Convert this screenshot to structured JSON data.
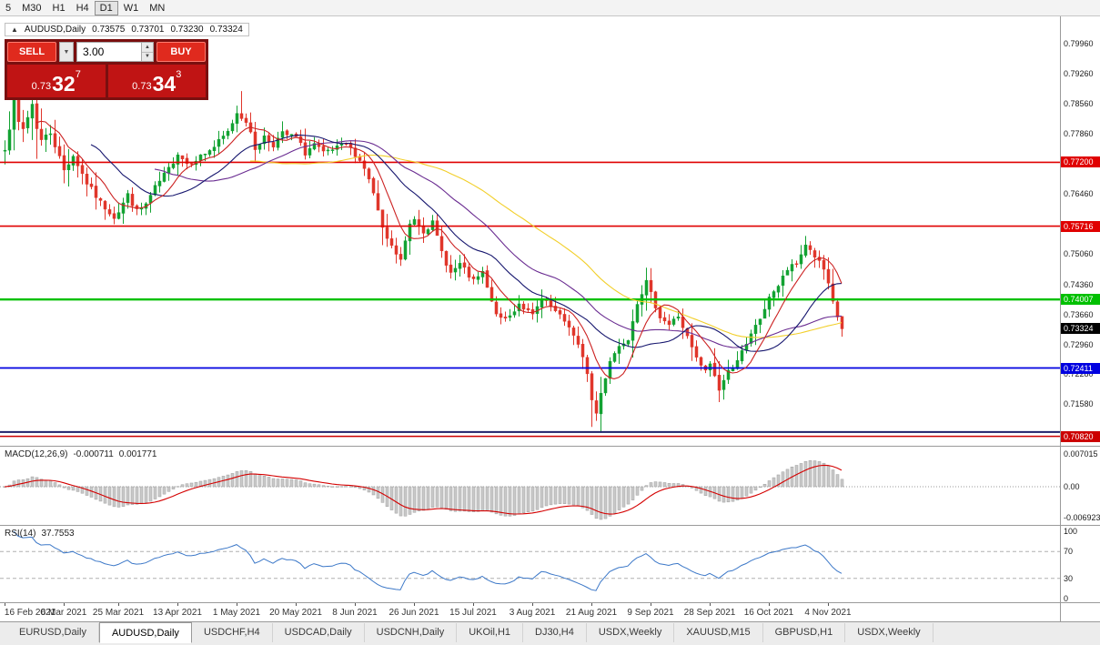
{
  "colors": {
    "btn-red": "#e02a1e",
    "panel-red": "#7a0f0f",
    "box-red": "#c01414"
  },
  "toolbar": {
    "timeframes": [
      "5",
      "M30",
      "H1",
      "H4",
      "D1",
      "W1",
      "MN"
    ],
    "active": "D1"
  },
  "chart": {
    "symbol_header": {
      "arrow": "▲",
      "symbol": "AUDUSD,Daily",
      "open": "0.73575",
      "high": "0.73701",
      "low": "0.73230",
      "close": "0.73324"
    },
    "trade_panel": {
      "sell_label": "SELL",
      "buy_label": "BUY",
      "volume": "3.00",
      "bid": {
        "prefix": "0.73",
        "big": "32",
        "sup": "7"
      },
      "ask": {
        "prefix": "0.73",
        "big": "34",
        "sup": "3"
      }
    }
  },
  "chart_data": {
    "type": "candlestick",
    "symbol": "AUDUSD",
    "timeframe": "Daily",
    "y_axis": {
      "top": 0.806,
      "bottom": 0.706,
      "ticks": [
        [
          "0.79960",
          0.7996
        ],
        [
          "0.79260",
          0.7926
        ],
        [
          "0.78560",
          0.7856
        ],
        [
          "0.77860",
          0.7786
        ],
        [
          "0.76460",
          0.7646
        ],
        [
          "0.75060",
          0.7506
        ],
        [
          "0.74360",
          0.7436
        ],
        [
          "0.73660",
          0.7366
        ],
        [
          "0.72960",
          0.7296
        ],
        [
          "0.72280",
          0.7228
        ],
        [
          "0.71580",
          0.7158
        ]
      ]
    },
    "x_axis_dates": [
      [
        "16 Feb 2021",
        0
      ],
      [
        "6 Mar 2021",
        13
      ],
      [
        "25 Mar 2021",
        25
      ],
      [
        "13 Apr 2021",
        38
      ],
      [
        "1 May 2021",
        51
      ],
      [
        "20 May 2021",
        64
      ],
      [
        "8 Jun 2021",
        77
      ],
      [
        "26 Jun 2021",
        90
      ],
      [
        "15 Jul 2021",
        103
      ],
      [
        "3 Aug 2021",
        116
      ],
      [
        "21 Aug 2021",
        129
      ],
      [
        "9 Sep 2021",
        142
      ],
      [
        "28 Sep 2021",
        155
      ],
      [
        "16 Oct 2021",
        168
      ],
      [
        "4 Nov 2021",
        181
      ]
    ],
    "candles": {
      "count": 185,
      "close_anchors": [
        [
          0,
          0.7755
        ],
        [
          1,
          0.7802
        ],
        [
          2,
          0.7858
        ],
        [
          3,
          0.7812
        ],
        [
          4,
          0.7798
        ],
        [
          5,
          0.7826
        ],
        [
          6,
          0.7856
        ],
        [
          7,
          0.7802
        ],
        [
          8,
          0.7772
        ],
        [
          10,
          0.779
        ],
        [
          13,
          0.7702
        ],
        [
          15,
          0.7736
        ],
        [
          18,
          0.7672
        ],
        [
          21,
          0.7626
        ],
        [
          24,
          0.7594
        ],
        [
          25,
          0.7606
        ],
        [
          27,
          0.7644
        ],
        [
          29,
          0.7606
        ],
        [
          31,
          0.7622
        ],
        [
          33,
          0.766
        ],
        [
          36,
          0.7704
        ],
        [
          38,
          0.7742
        ],
        [
          40,
          0.7718
        ],
        [
          43,
          0.7734
        ],
        [
          46,
          0.7756
        ],
        [
          49,
          0.779
        ],
        [
          51,
          0.7836
        ],
        [
          53,
          0.7818
        ],
        [
          55,
          0.7752
        ],
        [
          57,
          0.778
        ],
        [
          59,
          0.7762
        ],
        [
          61,
          0.7786
        ],
        [
          64,
          0.7778
        ],
        [
          66,
          0.7742
        ],
        [
          68,
          0.7762
        ],
        [
          70,
          0.774
        ],
        [
          73,
          0.7752
        ],
        [
          75,
          0.7762
        ],
        [
          77,
          0.774
        ],
        [
          79,
          0.7708
        ],
        [
          81,
          0.7648
        ],
        [
          83,
          0.7562
        ],
        [
          85,
          0.7522
        ],
        [
          87,
          0.7492
        ],
        [
          89,
          0.7576
        ],
        [
          90,
          0.759
        ],
        [
          92,
          0.7562
        ],
        [
          94,
          0.7578
        ],
        [
          96,
          0.7512
        ],
        [
          98,
          0.7462
        ],
        [
          100,
          0.7482
        ],
        [
          103,
          0.7442
        ],
        [
          105,
          0.7462
        ],
        [
          107,
          0.7392
        ],
        [
          109,
          0.7352
        ],
        [
          111,
          0.7362
        ],
        [
          113,
          0.7392
        ],
        [
          116,
          0.7362
        ],
        [
          118,
          0.74
        ],
        [
          120,
          0.7382
        ],
        [
          122,
          0.736
        ],
        [
          124,
          0.734
        ],
        [
          126,
          0.7292
        ],
        [
          128,
          0.7232
        ],
        [
          129,
          0.7166
        ],
        [
          130,
          0.7136
        ],
        [
          131,
          0.7182
        ],
        [
          133,
          0.726
        ],
        [
          135,
          0.7292
        ],
        [
          137,
          0.7312
        ],
        [
          139,
          0.7396
        ],
        [
          141,
          0.744
        ],
        [
          142,
          0.7412
        ],
        [
          144,
          0.7362
        ],
        [
          146,
          0.7342
        ],
        [
          148,
          0.7362
        ],
        [
          150,
          0.7312
        ],
        [
          152,
          0.7262
        ],
        [
          154,
          0.7232
        ],
        [
          155,
          0.7252
        ],
        [
          157,
          0.7192
        ],
        [
          159,
          0.7232
        ],
        [
          161,
          0.7262
        ],
        [
          163,
          0.7292
        ],
        [
          165,
          0.7342
        ],
        [
          167,
          0.7372
        ],
        [
          168,
          0.741
        ],
        [
          170,
          0.7432
        ],
        [
          172,
          0.747
        ],
        [
          174,
          0.7482
        ],
        [
          176,
          0.753
        ],
        [
          178,
          0.7502
        ],
        [
          180,
          0.747
        ],
        [
          181,
          0.7432
        ],
        [
          182,
          0.7392
        ],
        [
          183,
          0.736
        ],
        [
          184,
          0.73324
        ]
      ],
      "wick_overrides": [
        [
          2,
          "h",
          0.7878
        ],
        [
          6,
          "h",
          0.7884
        ],
        [
          24,
          "l",
          0.7576
        ],
        [
          52,
          "h",
          0.7886
        ],
        [
          87,
          "l",
          0.7479
        ],
        [
          129,
          "l",
          0.7104
        ],
        [
          130,
          "l",
          0.712
        ],
        [
          141,
          "h",
          0.7462
        ],
        [
          157,
          "l",
          0.7172
        ],
        [
          176,
          "h",
          0.7548
        ]
      ],
      "colors": {
        "up": "#13a232",
        "down": "#e0362b"
      }
    },
    "hlines": [
      {
        "price": 0.772,
        "label": "0.77200",
        "color": "#e00000",
        "width": 1.6
      },
      {
        "price": 0.75716,
        "label": "0.75716",
        "color": "#e00000",
        "width": 1.6
      },
      {
        "price": 0.74007,
        "label": "0.74007",
        "color": "#00c000",
        "width": 2.4
      },
      {
        "price": 0.72411,
        "label": "0.72411",
        "color": "#0000e0",
        "width": 1.8
      },
      {
        "price": 0.7092,
        "label": null,
        "color": "#20206a",
        "width": 2.0
      },
      {
        "price": 0.7082,
        "label": "0.70820",
        "color": "#cc0000",
        "width": 1.4
      }
    ],
    "current_price": {
      "label": "0.73324",
      "price": 0.73324,
      "badge_color": "#000000"
    },
    "moving_averages": [
      {
        "period": 55,
        "color": "#f2cf2a"
      },
      {
        "period": 34,
        "color": "#6a2c91"
      },
      {
        "period": 20,
        "color": "#16166e"
      },
      {
        "period": 8,
        "color": "#cc2222"
      }
    ],
    "macd": {
      "label": "MACD(12,26,9)",
      "value1": "-0.000711",
      "value2": "0.001771",
      "fast": 12,
      "slow": 26,
      "signal": 9,
      "axis_labels": [
        "0.007015",
        "0.00",
        "-0.006923"
      ],
      "hist_color": "#c9c9c9",
      "hist_border": "#9e9e9e",
      "signal_color": "#d40000"
    },
    "rsi": {
      "label": "RSI(14)",
      "value": "37.7553",
      "period": 14,
      "levels": [
        70,
        30
      ],
      "axis_labels": [
        "100",
        "70",
        "30",
        "0"
      ],
      "color": "#3c78c8"
    }
  },
  "bottom_tabs": {
    "active_index": 1,
    "items": [
      "EURUSD,Daily",
      "AUDUSD,Daily",
      "USDCHF,H4",
      "USDCAD,Daily",
      "USDCNH,Daily",
      "UKOil,H1",
      "DJ30,H4",
      "USDX,Weekly",
      "XAUUSD,M15",
      "GBPUSD,H1",
      "USDX,Weekly"
    ]
  }
}
